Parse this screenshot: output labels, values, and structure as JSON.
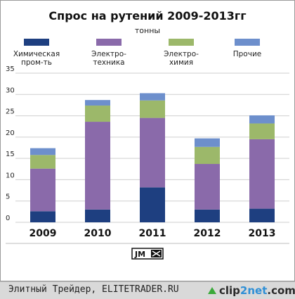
{
  "chart_data": {
    "type": "bar",
    "stacked": true,
    "title": "Спрос на рутений 2009-2013гг",
    "subtitle": "тонны",
    "categories": [
      "2009",
      "2010",
      "2011",
      "2012",
      "2013"
    ],
    "ylim": [
      0,
      35
    ],
    "yticks": [
      0,
      5,
      10,
      15,
      20,
      25,
      30,
      35
    ],
    "grid": true,
    "legend_position": "top",
    "series": [
      {
        "name_lines": [
          "Химическая",
          "пром-ть"
        ],
        "color": "#1e3f80",
        "values": [
          2.6,
          3.0,
          8.2,
          3.0,
          3.2
        ]
      },
      {
        "name_lines": [
          "Электро-",
          "техника"
        ],
        "color": "#8a6aaa",
        "values": [
          10.0,
          20.6,
          16.3,
          10.7,
          16.3
        ]
      },
      {
        "name_lines": [
          "Электро-",
          "химия"
        ],
        "color": "#9cb86a",
        "values": [
          3.2,
          3.8,
          4.1,
          4.0,
          3.7
        ]
      },
      {
        "name_lines": [
          "Прочие"
        ],
        "color": "#6d8fcc",
        "values": [
          1.6,
          1.3,
          1.7,
          2.0,
          1.9
        ]
      }
    ]
  },
  "logo": {
    "text": "JM"
  },
  "footer": {
    "source": "Элитный Трейдер, ELITETRADER.RU",
    "badge_main": "clip",
    "badge_accent": "2net",
    "badge_suffix": ".com"
  }
}
